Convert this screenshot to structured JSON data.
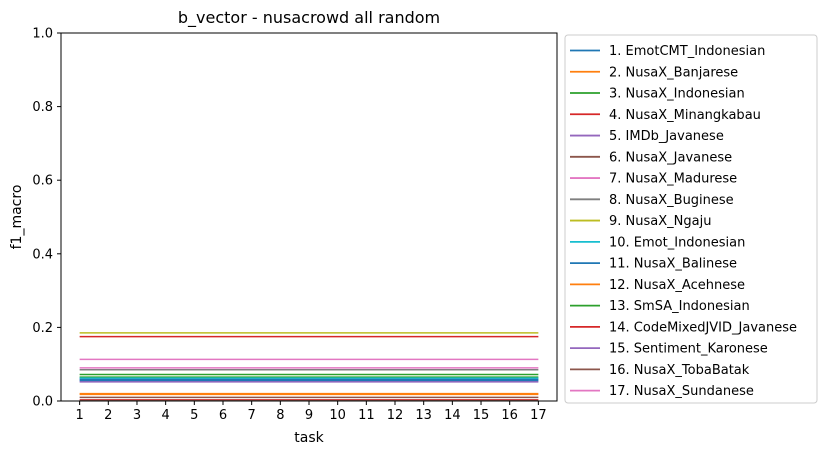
{
  "chart_data": {
    "type": "line",
    "title": "b_vector - nusacrowd all random",
    "xlabel": "task",
    "ylabel": "f1_macro",
    "x": [
      1,
      2,
      3,
      4,
      5,
      6,
      7,
      8,
      9,
      10,
      11,
      12,
      13,
      14,
      15,
      16,
      17
    ],
    "x_ticks": [
      "1",
      "2",
      "3",
      "4",
      "5",
      "6",
      "7",
      "8",
      "9",
      "10",
      "11",
      "12",
      "13",
      "14",
      "15",
      "16",
      "17"
    ],
    "ylim": [
      0,
      1.0
    ],
    "y_ticks": [
      "0.0",
      "0.2",
      "0.4",
      "0.6",
      "0.8",
      "1.0"
    ],
    "grid": false,
    "legend_position": "outside-right",
    "series": [
      {
        "name": "1. EmotCMT_Indonesian",
        "color": "#1f77b4",
        "value": 0.055
      },
      {
        "name": "2. NusaX_Banjarese",
        "color": "#ff7f0e",
        "value": 0.02
      },
      {
        "name": "3. NusaX_Indonesian",
        "color": "#2ca02c",
        "value": 0.065
      },
      {
        "name": "4. NusaX_Minangkabau",
        "color": "#d62728",
        "value": 0.175
      },
      {
        "name": "5. IMDb_Javanese",
        "color": "#9467bd",
        "value": 0.06
      },
      {
        "name": "6. NusaX_Javanese",
        "color": "#8c564b",
        "value": 0.01
      },
      {
        "name": "7. NusaX_Madurese",
        "color": "#e377c2",
        "value": 0.09
      },
      {
        "name": "8. NusaX_Buginese",
        "color": "#7f7f7f",
        "value": 0.085
      },
      {
        "name": "9. NusaX_Ngaju",
        "color": "#bcbd22",
        "value": 0.185
      },
      {
        "name": "10. Emot_Indonesian",
        "color": "#17becf",
        "value": 0.062
      },
      {
        "name": "11. NusaX_Balinese",
        "color": "#1f77b4",
        "value": 0.058
      },
      {
        "name": "12. NusaX_Acehnese",
        "color": "#ff7f0e",
        "value": 0.018
      },
      {
        "name": "13. SmSA_Indonesian",
        "color": "#2ca02c",
        "value": 0.072
      },
      {
        "name": "14. CodeMixedJVID_Javanese",
        "color": "#d62728",
        "value": 0.003
      },
      {
        "name": "15. Sentiment_Karonese",
        "color": "#9467bd",
        "value": 0.052
      },
      {
        "name": "16. NusaX_TobaBatak",
        "color": "#8c564b",
        "value": 0.001
      },
      {
        "name": "17. NusaX_Sundanese",
        "color": "#e377c2",
        "value": 0.113
      }
    ]
  }
}
